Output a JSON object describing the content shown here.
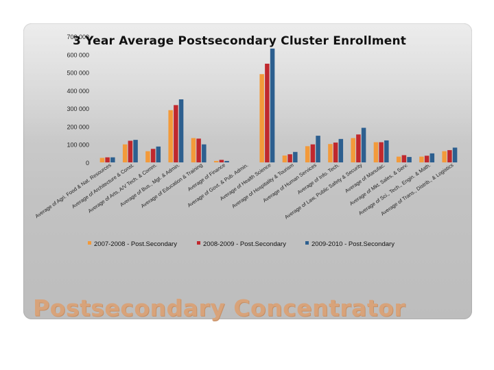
{
  "slide_title": "Postsecondary Concentrator",
  "chart_data": {
    "type": "bar",
    "title": "3 Year Average Postsecondary  Cluster Enrollment",
    "ylim": [
      0,
      700000
    ],
    "yticks": [
      "0",
      "100 000",
      "200 000",
      "300 000",
      "400 000",
      "500 000",
      "600 000",
      "700 000"
    ],
    "grid": false,
    "legend_position": "bottom",
    "categories": [
      "Average of Agri. Food & Nat. Resources",
      "Average of Architecture & Const.",
      "Average of Arts, A/V Tech. & Comm.",
      "Average of Bus., Mgt. & Admin.",
      "Average of Education & Training",
      "Average of Finance",
      "Average of Govt. & Pub. Admin.",
      "Average of Health Science",
      "Average of Hospitality & Tourism",
      "Average of Human Services",
      "Average of Info. Tech.",
      "Average of Law, Public Safety & Security",
      "Average of Manufac.",
      "Average of Mkt. Sales, & Serv.",
      "Average of Sci., Tech., Engin. & Math.",
      "Average of Trans., Distrib., & Logistics"
    ],
    "series": [
      {
        "name": "2007-2008 - Post.Secondary",
        "color": "#f39a3a",
        "values": [
          25000,
          100000,
          62000,
          290000,
          135000,
          8000,
          0,
          490000,
          38000,
          90000,
          102000,
          135000,
          112000,
          32000,
          32000,
          62000
        ]
      },
      {
        "name": "2008-2009 - Post.Secondary",
        "color": "#c0282d",
        "values": [
          28000,
          120000,
          75000,
          318000,
          132000,
          14000,
          0,
          548000,
          45000,
          100000,
          110000,
          155000,
          112000,
          40000,
          37000,
          68000
        ]
      },
      {
        "name": "2009-2010 - Post.Secondary",
        "color": "#2d5f8f",
        "values": [
          28000,
          125000,
          88000,
          350000,
          100000,
          8000,
          0,
          632000,
          58000,
          148000,
          130000,
          192000,
          122000,
          30000,
          50000,
          82000
        ]
      }
    ]
  }
}
